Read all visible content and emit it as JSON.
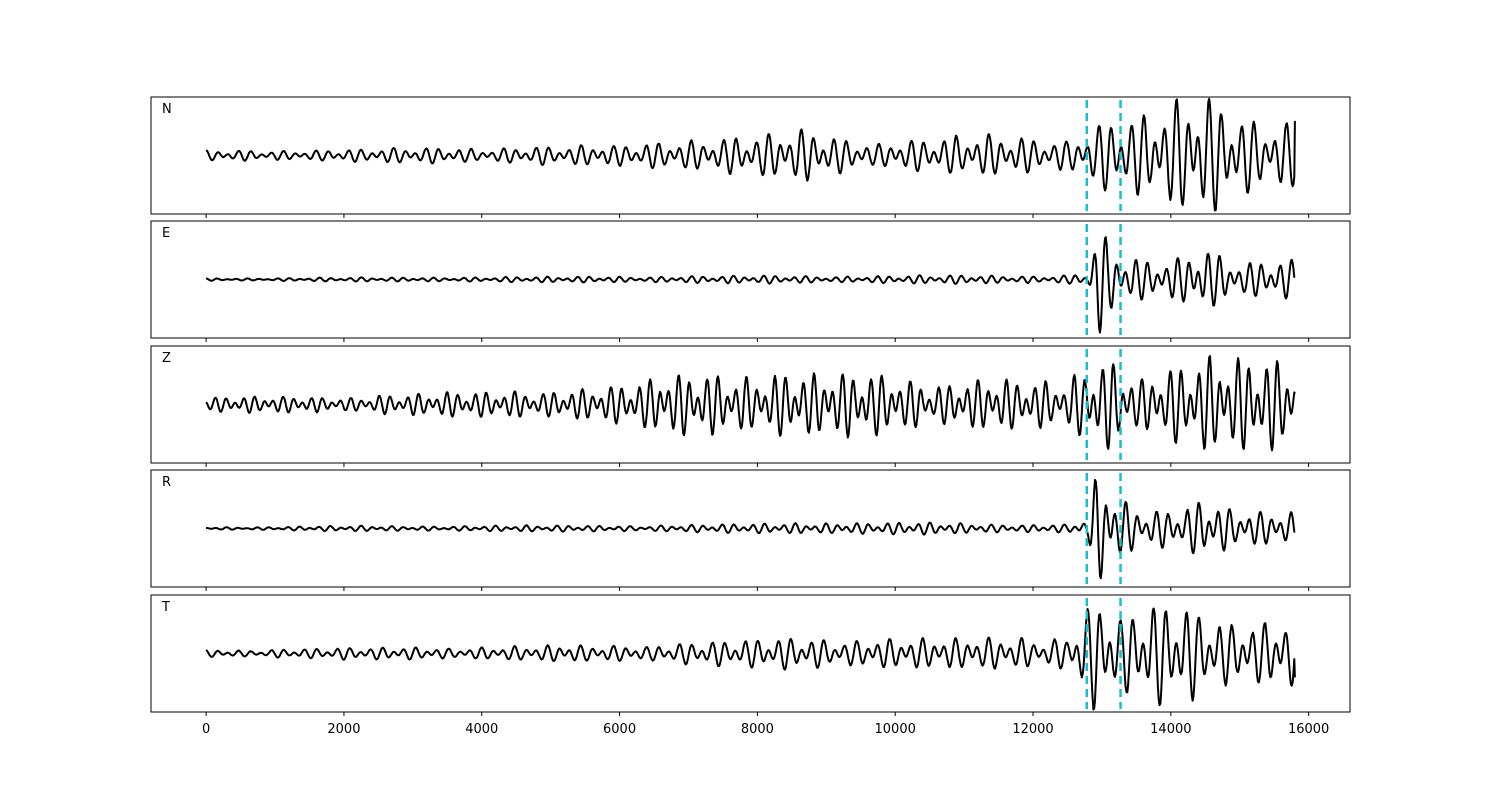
{
  "chart_data": {
    "type": "line",
    "subplots": 5,
    "shared_x": true,
    "xlim": [
      -800,
      16600
    ],
    "x_ticks": [
      0,
      2000,
      4000,
      6000,
      8000,
      10000,
      12000,
      14000,
      16000
    ],
    "x_tick_labels": [
      "0",
      "2000",
      "4000",
      "6000",
      "8000",
      "10000",
      "12000",
      "14000",
      "16000"
    ],
    "y_ticks_shown": false,
    "grid": false,
    "trace_color": "#000000",
    "pick_color": "#17becf",
    "picks": [
      12780,
      13270
    ],
    "trace_x_range": [
      0,
      15800
    ],
    "panels": [
      {
        "label": "N",
        "ylim": [
          -1.1,
          1.1
        ],
        "envelope": [
          [
            0,
            0.08
          ],
          [
            2000,
            0.1
          ],
          [
            4000,
            0.13
          ],
          [
            6000,
            0.16
          ],
          [
            7000,
            0.28
          ],
          [
            8000,
            0.3
          ],
          [
            8700,
            0.4
          ],
          [
            9500,
            0.25
          ],
          [
            11000,
            0.3
          ],
          [
            12500,
            0.3
          ],
          [
            12800,
            0.45
          ],
          [
            13100,
            0.75
          ],
          [
            13500,
            0.6
          ],
          [
            14000,
            0.75
          ],
          [
            14500,
            1.0
          ],
          [
            15000,
            0.75
          ],
          [
            15800,
            0.6
          ]
        ],
        "periods": [
          160,
          230
        ],
        "end_value": 0.65,
        "seed": 11
      },
      {
        "label": "E",
        "ylim": [
          -1.1,
          1.1
        ],
        "envelope": [
          [
            0,
            0.02
          ],
          [
            2000,
            0.03
          ],
          [
            6000,
            0.05
          ],
          [
            8000,
            0.06
          ],
          [
            10000,
            0.06
          ],
          [
            12500,
            0.07
          ],
          [
            12800,
            0.12
          ],
          [
            12950,
            0.95
          ],
          [
            13100,
            0.55
          ],
          [
            13400,
            0.3
          ],
          [
            14000,
            0.3
          ],
          [
            14500,
            0.6
          ],
          [
            15000,
            0.35
          ],
          [
            15800,
            0.3
          ]
        ],
        "periods": [
          150,
          210
        ],
        "end_value": 0.05,
        "seed": 23
      },
      {
        "label": "Z",
        "ylim": [
          -1.1,
          1.1
        ],
        "envelope": [
          [
            0,
            0.12
          ],
          [
            2000,
            0.14
          ],
          [
            4000,
            0.2
          ],
          [
            6000,
            0.3
          ],
          [
            7000,
            0.55
          ],
          [
            8000,
            0.5
          ],
          [
            9500,
            0.5
          ],
          [
            11000,
            0.4
          ],
          [
            12500,
            0.35
          ],
          [
            12900,
            0.85
          ],
          [
            13100,
            0.9
          ],
          [
            13500,
            0.5
          ],
          [
            14500,
            0.75
          ],
          [
            15000,
            0.7
          ],
          [
            15700,
            0.8
          ],
          [
            15800,
            0.6
          ]
        ],
        "periods": [
          140,
          200
        ],
        "end_value": 0.2,
        "seed": 37
      },
      {
        "label": "R",
        "ylim": [
          -1.1,
          1.1
        ],
        "envelope": [
          [
            0,
            0.02
          ],
          [
            2000,
            0.04
          ],
          [
            6000,
            0.05
          ],
          [
            8000,
            0.07
          ],
          [
            9000,
            0.1
          ],
          [
            12500,
            0.07
          ],
          [
            12800,
            0.15
          ],
          [
            12950,
            1.0
          ],
          [
            13200,
            0.5
          ],
          [
            13600,
            0.25
          ],
          [
            14200,
            0.35
          ],
          [
            14500,
            0.65
          ],
          [
            15000,
            0.3
          ],
          [
            15800,
            0.25
          ]
        ],
        "periods": [
          150,
          220
        ],
        "end_value": -0.05,
        "seed": 51
      },
      {
        "label": "T",
        "ylim": [
          -1.1,
          1.1
        ],
        "envelope": [
          [
            0,
            0.06
          ],
          [
            3000,
            0.1
          ],
          [
            6000,
            0.14
          ],
          [
            8000,
            0.22
          ],
          [
            9000,
            0.25
          ],
          [
            11000,
            0.25
          ],
          [
            12500,
            0.3
          ],
          [
            12900,
            1.0
          ],
          [
            13300,
            0.55
          ],
          [
            13700,
            0.8
          ],
          [
            14500,
            0.75
          ],
          [
            15000,
            0.65
          ],
          [
            15800,
            0.6
          ]
        ],
        "periods": [
          160,
          240
        ],
        "end_value": -0.45,
        "seed": 67
      }
    ]
  }
}
